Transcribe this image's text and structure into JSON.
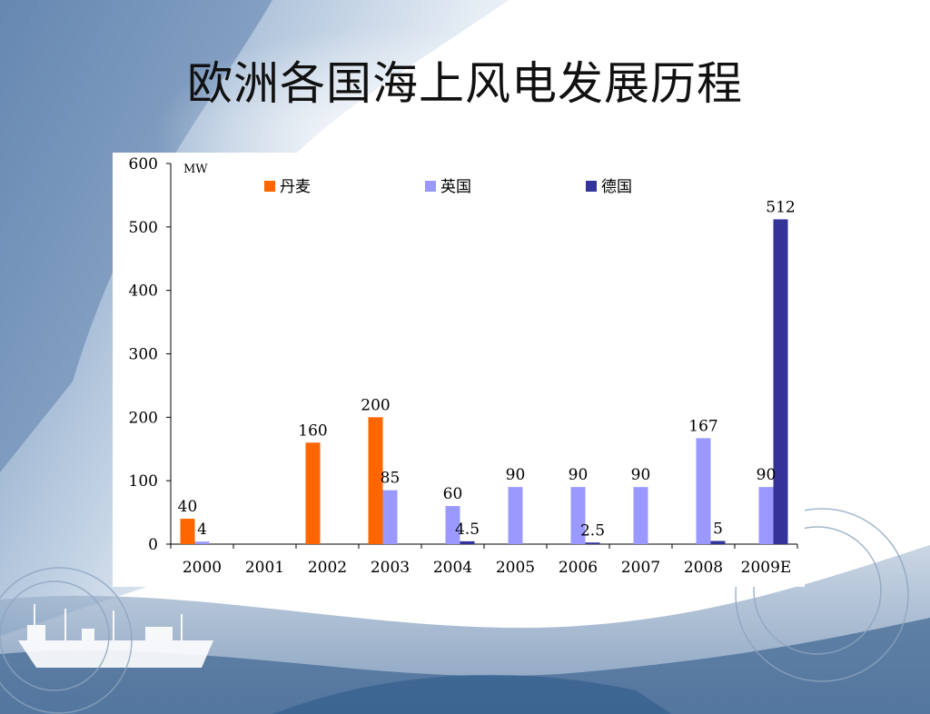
{
  "slide": {
    "title": "欧洲各国海上风电发展历程"
  },
  "chart_data": {
    "type": "bar",
    "title": "",
    "unit_label": "MW",
    "ylim": [
      0,
      600
    ],
    "yticks": [
      0,
      100,
      200,
      300,
      400,
      500,
      600
    ],
    "grid": false,
    "legend_position": "top",
    "categories": [
      "2000",
      "2001",
      "2002",
      "2003",
      "2004",
      "2005",
      "2006",
      "2007",
      "2008",
      "2009E"
    ],
    "series": [
      {
        "name": "丹麦",
        "color": "#ff6600",
        "values": [
          40,
          null,
          160,
          200,
          null,
          null,
          null,
          null,
          null,
          null
        ],
        "labels": [
          "40",
          "",
          "160",
          "200",
          "",
          "",
          "",
          "",
          "",
          ""
        ]
      },
      {
        "name": "英国",
        "color": "#9999ff",
        "values": [
          4,
          null,
          null,
          85,
          60,
          90,
          90,
          90,
          167,
          90
        ],
        "labels": [
          "4",
          "",
          "",
          "85",
          "60",
          "90",
          "90",
          "90",
          "167",
          "90"
        ]
      },
      {
        "name": "德国",
        "color": "#333399",
        "values": [
          null,
          null,
          null,
          null,
          4.5,
          null,
          2.5,
          null,
          5,
          512
        ],
        "labels": [
          "",
          "",
          "",
          "",
          "4.5",
          "",
          "2.5",
          "",
          "5",
          "512"
        ]
      }
    ]
  }
}
